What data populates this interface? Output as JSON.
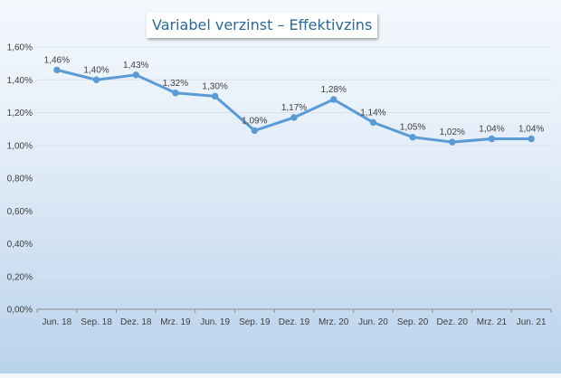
{
  "chart_data": {
    "type": "line",
    "title": "Variabel verzinst – Effektivzins",
    "xlabel": "",
    "ylabel": "",
    "categories": [
      "Jun. 18",
      "Sep. 18",
      "Dez. 18",
      "Mrz. 19",
      "Jun. 19",
      "Sep. 19",
      "Dez. 19",
      "Mrz. 20",
      "Jun. 20",
      "Sep. 20",
      "Dez. 20",
      "Mrz. 21",
      "Jun. 21"
    ],
    "series": [
      {
        "values": [
          1.46,
          1.4,
          1.43,
          1.32,
          1.3,
          1.09,
          1.17,
          1.28,
          1.14,
          1.05,
          1.02,
          1.04,
          1.04
        ],
        "data_labels": [
          "1,46%",
          "1,40%",
          "1,43%",
          "1,32%",
          "1,30%",
          "1,09%",
          "1,17%",
          "1,28%",
          "1,14%",
          "1,05%",
          "1,02%",
          "1,04%",
          "1,04%"
        ],
        "color": "#5b9bd5"
      }
    ],
    "ylim": [
      0,
      1.6
    ],
    "y_ticks": [
      0,
      0.2,
      0.4,
      0.6,
      0.8,
      1.0,
      1.2,
      1.4,
      1.6
    ],
    "y_tick_labels": [
      "0,00%",
      "0,20%",
      "0,40%",
      "0,60%",
      "0,80%",
      "1,00%",
      "1,20%",
      "1,40%",
      "1,60%"
    ],
    "grid": true,
    "gridline_color": "#d9e2ec",
    "axis_color": "#8c8c8c",
    "text_color": "#404040"
  }
}
